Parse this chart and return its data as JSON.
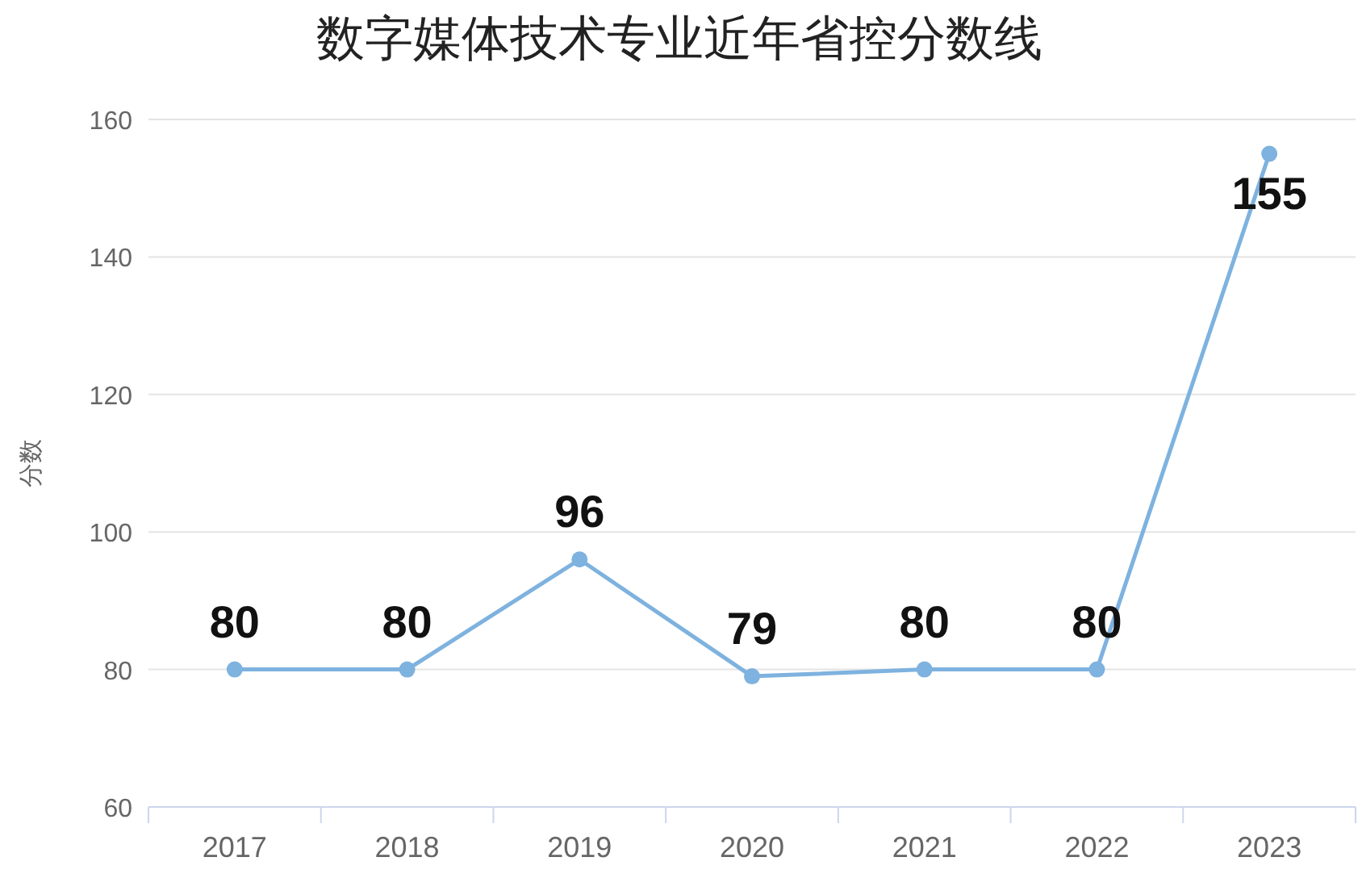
{
  "chart_data": {
    "type": "line",
    "title": "数字媒体技术专业近年省控分数线",
    "ylabel": "分数",
    "categories": [
      "2017",
      "2018",
      "2019",
      "2020",
      "2021",
      "2022",
      "2023"
    ],
    "series": [
      {
        "color": "#7eb2df",
        "values": [
          80,
          80,
          96,
          79,
          80,
          80,
          155
        ]
      }
    ],
    "ylim": [
      60,
      160
    ],
    "yticks": [
      60,
      80,
      100,
      120,
      140,
      160
    ],
    "grid": "y",
    "marker": "circle",
    "data_labels": true
  }
}
